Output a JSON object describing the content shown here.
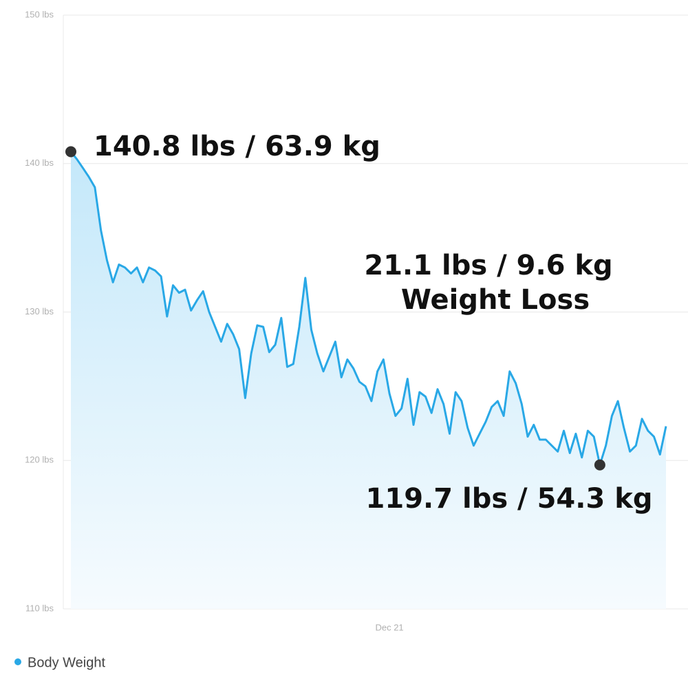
{
  "chart_data": {
    "type": "area",
    "categories": [
      null,
      null,
      null,
      null,
      null,
      null,
      null,
      null,
      null,
      null,
      null,
      null,
      null,
      null,
      null,
      null,
      null,
      null,
      null,
      null,
      null,
      null,
      null,
      null,
      null,
      null,
      null,
      null,
      null,
      null,
      null,
      null,
      null,
      null,
      null,
      null,
      null,
      null,
      null,
      null,
      null,
      null,
      null,
      null,
      null,
      null,
      null,
      null,
      null,
      null,
      null,
      null,
      null,
      "Dec 21",
      null,
      null,
      null,
      null,
      null,
      null,
      null,
      null,
      null,
      null,
      null,
      null,
      null,
      null,
      null,
      null,
      null,
      null,
      null,
      null,
      null,
      null,
      null,
      null,
      null,
      null,
      null,
      null,
      null,
      null,
      null,
      null,
      null,
      null,
      null,
      null,
      null,
      null,
      null,
      null,
      null,
      null,
      null,
      null,
      null,
      null
    ],
    "series": [
      {
        "name": "Body Weight",
        "color": "#29a8e6",
        "values": [
          140.8,
          140.3,
          139.7,
          139.1,
          138.4,
          135.5,
          133.5,
          132.0,
          133.2,
          133.0,
          132.6,
          133.0,
          132.0,
          133.0,
          132.8,
          132.4,
          129.7,
          131.8,
          131.3,
          131.5,
          130.1,
          130.8,
          131.4,
          130.0,
          129.0,
          128.0,
          129.2,
          128.5,
          127.5,
          124.2,
          127.2,
          129.1,
          129.0,
          127.3,
          127.8,
          129.6,
          126.3,
          126.5,
          129.0,
          132.3,
          128.8,
          127.2,
          126.0,
          127.0,
          128.0,
          125.6,
          126.8,
          126.2,
          125.3,
          125.0,
          124.0,
          126.0,
          126.8,
          124.5,
          123.0,
          123.5,
          125.5,
          122.4,
          124.6,
          124.3,
          123.2,
          124.8,
          123.8,
          121.8,
          124.6,
          124.0,
          122.2,
          121.0,
          121.8,
          122.6,
          123.6,
          124.0,
          123.0,
          126.0,
          125.2,
          123.8,
          121.6,
          122.4,
          121.4,
          121.4,
          121.0,
          120.6,
          122.0,
          120.5,
          121.8,
          120.2,
          122.0,
          121.6,
          119.7,
          121.0,
          123.0,
          124.0,
          122.2,
          120.6,
          121.0,
          122.8,
          122.0,
          121.6,
          120.4,
          122.3
        ]
      }
    ],
    "ylim": [
      110,
      150
    ],
    "yticks": [
      {
        "value": 110,
        "label": "110 lbs"
      },
      {
        "value": 120,
        "label": "120 lbs"
      },
      {
        "value": 130,
        "label": "130 lbs"
      },
      {
        "value": 140,
        "label": "140 lbs"
      },
      {
        "value": 150,
        "label": "150 lbs"
      }
    ],
    "grid": true,
    "annotations": [
      "140.8 lbs / 63.9 kg",
      "21.1 lbs / 9.6 kg",
      "Weight Loss",
      "119.7 lbs / 54.3 kg"
    ],
    "legend": "bottom-left"
  }
}
